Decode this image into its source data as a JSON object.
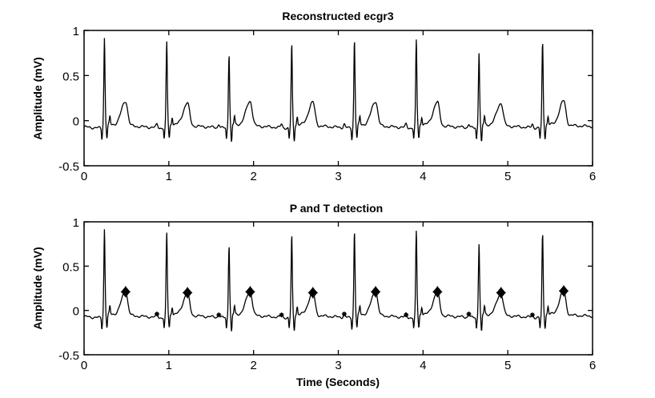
{
  "chart_data": [
    {
      "type": "line",
      "title": "Reconstructed ecgr3",
      "xlabel": "",
      "ylabel": "Amplitude (mV)",
      "xlim": [
        0,
        6
      ],
      "ylim": [
        -0.5,
        1
      ],
      "xticks": [
        "0",
        "1",
        "2",
        "3",
        "4",
        "5",
        "6"
      ],
      "yticks": [
        "-0.5",
        "0",
        "0.5",
        "1"
      ],
      "grid": false,
      "r_peaks": {
        "t": [
          0.24,
          0.975,
          1.71,
          2.45,
          3.19,
          3.92,
          4.66,
          5.41
        ],
        "v": [
          0.91,
          0.87,
          0.75,
          0.85,
          0.9,
          0.88,
          0.75,
          0.87
        ]
      },
      "s_troughs": {
        "v": [
          -0.2,
          -0.2,
          -0.25,
          -0.23,
          -0.2,
          -0.2,
          -0.25,
          -0.2
        ]
      },
      "t_waves": {
        "t": [
          0.49,
          1.22,
          1.96,
          2.7,
          3.44,
          4.17,
          4.92,
          5.66
        ],
        "v": [
          0.21,
          0.19,
          0.21,
          0.2,
          0.21,
          0.2,
          0.19,
          0.21
        ]
      },
      "p_waves": {
        "t": [
          0.86,
          1.59,
          2.33,
          3.07,
          3.8,
          4.54,
          5.29
        ],
        "v": [
          -0.04,
          -0.05,
          -0.05,
          -0.04,
          -0.05,
          -0.04,
          -0.05
        ]
      }
    },
    {
      "type": "line",
      "title": "P and T detection",
      "xlabel": "Time (Seconds)",
      "ylabel": "Amplitude (mV)",
      "xlim": [
        0,
        6
      ],
      "ylim": [
        -0.5,
        1
      ],
      "xticks": [
        "0",
        "1",
        "2",
        "3",
        "4",
        "5",
        "6"
      ],
      "yticks": [
        "-0.5",
        "0",
        "0.5",
        "1"
      ],
      "grid": false,
      "markers": {
        "T": {
          "t": [
            0.49,
            1.22,
            1.96,
            2.7,
            3.44,
            4.17,
            4.92,
            5.66
          ],
          "v": [
            0.21,
            0.2,
            0.21,
            0.2,
            0.21,
            0.21,
            0.2,
            0.22
          ]
        },
        "P": {
          "t": [
            0.86,
            1.59,
            2.33,
            3.07,
            3.8,
            4.54,
            5.29
          ],
          "v": [
            -0.04,
            -0.05,
            -0.05,
            -0.04,
            -0.05,
            -0.04,
            -0.05
          ]
        }
      }
    }
  ]
}
